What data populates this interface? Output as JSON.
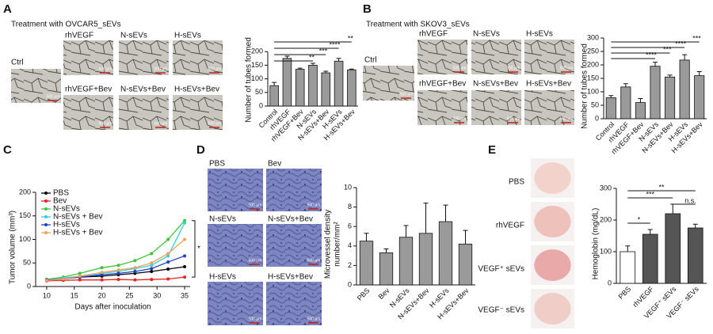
{
  "figure": {
    "panels": [
      {
        "letter": "A",
        "title": "Treatment with OVCAR5_sEVs",
        "images": [
          "Ctrl",
          "rhVEGF",
          "N-sEVs",
          "H-sEVs",
          "rhVEGF+Bev",
          "N-sEVs+Bev",
          "H-sEVs+Bev"
        ],
        "scale_bar": "500 μm"
      },
      {
        "letter": "B",
        "title": "Treatment with SKOV3_sEVs",
        "images": [
          "Ctrl",
          "rhVEGF",
          "N-sEVs",
          "H-sEVs",
          "rhVEGF+Bev",
          "N-sEVs+Bev",
          "H-sEVs+Bev"
        ],
        "scale_bar": "500 μm"
      },
      {
        "letter": "C"
      },
      {
        "letter": "D",
        "images": [
          "PBS",
          "Bev",
          "N-sEVs",
          "N-sEVs+Bev",
          "H-sEVs",
          "H-sEVs+Bev"
        ],
        "scale_bar": "500 μm"
      },
      {
        "letter": "E",
        "images": [
          "PBS",
          "rhVEGF",
          "VEGF⁺ sEVs",
          "VEGF⁻ sEVs"
        ]
      }
    ]
  },
  "chart_data": [
    {
      "type": "bar",
      "y_label": "Number of tubes formed",
      "color": "#9a9a9a",
      "categories": [
        "Control",
        "rhVEGF",
        "rhVEGF+Bev",
        "N-sEVs",
        "N-sEVs+Bev",
        "H-sEVs",
        "H-sEVs+Bev"
      ],
      "values": [
        75,
        175,
        135,
        150,
        122,
        165,
        133
      ],
      "errors": [
        12,
        8,
        4,
        7,
        6,
        10,
        3
      ],
      "ylim": [
        0,
        250
      ],
      "yticks": [
        0,
        50,
        100,
        150,
        200
      ],
      "significance": [
        "**",
        "****",
        "***",
        "**"
      ]
    },
    {
      "type": "bar",
      "y_label": "Number of tubes formed",
      "color": "#9a9a9a",
      "categories": [
        "Control",
        "rhVEGF",
        "rhVEGF+Bev",
        "N-sEVs",
        "N-sEVs+Bev",
        "H-sEVs",
        "H-sEVs+Bev"
      ],
      "values": [
        78,
        118,
        60,
        195,
        155,
        218,
        160
      ],
      "errors": [
        8,
        12,
        15,
        15,
        7,
        20,
        15
      ],
      "ylim": [
        0,
        300
      ],
      "yticks": [
        0,
        50,
        100,
        150,
        200,
        250,
        300
      ],
      "significance": [
        "***",
        "****",
        "***",
        "****"
      ]
    },
    {
      "type": "line",
      "x_label": "Days after inoculation",
      "y_label": "Tumor volume (mm³)",
      "x": [
        10,
        13,
        16,
        20,
        23,
        26,
        29,
        32,
        35
      ],
      "xlim": [
        8,
        36
      ],
      "xticks": [
        10,
        15,
        20,
        25,
        30,
        35
      ],
      "ylim": [
        0,
        200
      ],
      "yticks": [
        0,
        50,
        100,
        150,
        200
      ],
      "annotation": "*",
      "series": [
        {
          "name": "PBS",
          "color": "#000000",
          "values": [
            15,
            17,
            20,
            22,
            25,
            28,
            32,
            37,
            42
          ]
        },
        {
          "name": "Bev",
          "color": "#e8221c",
          "values": [
            12,
            13,
            14,
            14,
            15,
            14,
            15,
            16,
            20
          ]
        },
        {
          "name": "N-sEVs",
          "color": "#3ec43a",
          "values": [
            15,
            20,
            28,
            40,
            45,
            55,
            70,
            100,
            140
          ]
        },
        {
          "name": "N-sEVs + Bev",
          "color": "#2fd0e0",
          "values": [
            14,
            18,
            22,
            28,
            32,
            38,
            45,
            65,
            135
          ]
        },
        {
          "name": "H-sEVs",
          "color": "#1f3fbf",
          "values": [
            14,
            16,
            20,
            25,
            28,
            32,
            38,
            52,
            65
          ]
        },
        {
          "name": "H-sEVs + Bev",
          "color": "#f2a25a",
          "values": [
            13,
            16,
            22,
            30,
            35,
            40,
            50,
            70,
            100
          ]
        }
      ]
    },
    {
      "type": "bar",
      "y_label": "Microvessel density",
      "y_label_2": "number/mm²",
      "color": "#9a9a9a",
      "categories": [
        "PBS",
        "Bev",
        "N-sEVs",
        "N-sEVs+Bev",
        "H-sEVs",
        "H-sEVs+Bev"
      ],
      "values": [
        4.5,
        3.3,
        4.9,
        5.3,
        6.5,
        4.2
      ],
      "errors": [
        0.8,
        0.4,
        1.2,
        3.1,
        1.7,
        1.4
      ],
      "ylim": [
        0,
        10
      ],
      "yticks": [
        0,
        2,
        4,
        6,
        8,
        10
      ]
    },
    {
      "type": "bar",
      "y_label": "Hemoglobin (mg/dL)",
      "color": "#555555",
      "colors": [
        "#ffffff",
        "#555555",
        "#555555",
        "#555555"
      ],
      "categories": [
        "PBS",
        "rhVEGF",
        "VEGF⁺ sEVs",
        "VEGF⁻ sEVs"
      ],
      "values": [
        100,
        155,
        220,
        175
      ],
      "errors": [
        18,
        15,
        30,
        12
      ],
      "ylim": [
        0,
        300
      ],
      "yticks": [
        0,
        100,
        200,
        300
      ],
      "significance": [
        "*",
        "***",
        "**",
        "n.s."
      ]
    }
  ]
}
